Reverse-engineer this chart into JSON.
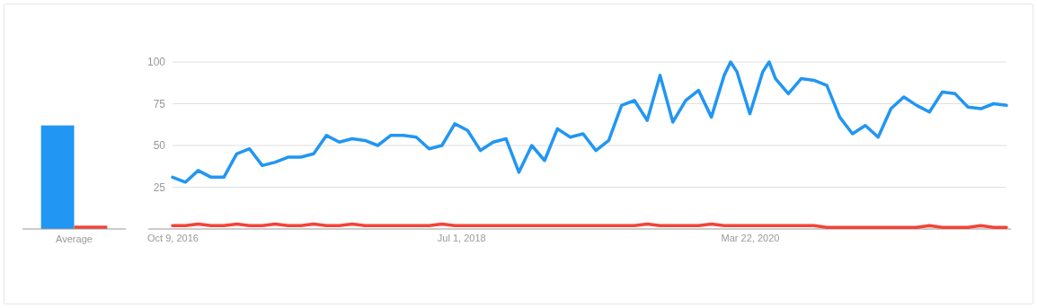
{
  "chart_data": [
    {
      "type": "bar",
      "categories": [
        "Average"
      ],
      "ylim": [
        0,
        100
      ],
      "tick_labels": "x",
      "series": [
        {
          "color": "#2196f3",
          "values": [
            62
          ]
        },
        {
          "color": "#f44336",
          "values": [
            2
          ]
        }
      ]
    },
    {
      "type": "line",
      "xlim": [
        "2016-10-09",
        "2021-10-03"
      ],
      "ylim": [
        0,
        100
      ],
      "yticks": [
        25,
        50,
        75,
        100
      ],
      "grid": "y",
      "xticks": [
        {
          "value": "2016-10-09",
          "label": "Oct 9, 2016"
        },
        {
          "value": "2018-07-01",
          "label": "Jul 1, 2018"
        },
        {
          "value": "2020-03-22",
          "label": "Mar 22, 2020"
        }
      ],
      "x": [
        "2016-10-09",
        "2016-11-06",
        "2016-12-04",
        "2017-01-01",
        "2017-01-29",
        "2017-02-26",
        "2017-03-26",
        "2017-04-23",
        "2017-05-21",
        "2017-06-18",
        "2017-07-16",
        "2017-08-13",
        "2017-09-10",
        "2017-10-08",
        "2017-11-05",
        "2017-12-03",
        "2017-12-31",
        "2018-01-28",
        "2018-02-25",
        "2018-03-25",
        "2018-04-22",
        "2018-05-20",
        "2018-06-17",
        "2018-07-15",
        "2018-08-12",
        "2018-09-09",
        "2018-10-07",
        "2018-11-04",
        "2018-12-02",
        "2018-12-30",
        "2019-01-27",
        "2019-02-24",
        "2019-03-24",
        "2019-04-21",
        "2019-05-19",
        "2019-06-16",
        "2019-07-14",
        "2019-08-11",
        "2019-09-08",
        "2019-10-06",
        "2019-11-03",
        "2019-12-01",
        "2019-12-29",
        "2020-01-26",
        "2020-02-09",
        "2020-02-23",
        "2020-03-22",
        "2020-04-19",
        "2020-05-03",
        "2020-05-17",
        "2020-06-14",
        "2020-07-12",
        "2020-08-09",
        "2020-09-06",
        "2020-10-04",
        "2020-11-01",
        "2020-11-29",
        "2020-12-27",
        "2021-01-24",
        "2021-02-21",
        "2021-03-21",
        "2021-04-18",
        "2021-05-16",
        "2021-06-13",
        "2021-07-11",
        "2021-08-08",
        "2021-09-05",
        "2021-10-03"
      ],
      "series": [
        {
          "color": "#2196f3",
          "values": [
            31,
            28,
            35,
            31,
            31,
            45,
            48,
            38,
            40,
            43,
            43,
            45,
            56,
            52,
            54,
            53,
            50,
            56,
            56,
            55,
            48,
            50,
            63,
            59,
            47,
            52,
            54,
            34,
            50,
            41,
            60,
            55,
            57,
            47,
            53,
            74,
            77,
            65,
            92,
            64,
            77,
            83,
            67,
            92,
            100,
            94,
            69,
            94,
            100,
            90,
            81,
            90,
            89,
            86,
            67,
            57,
            62,
            55,
            72,
            79,
            74,
            70,
            82,
            81,
            73,
            72,
            75,
            74
          ]
        },
        {
          "color": "#f44336",
          "values": [
            2,
            2,
            3,
            2,
            2,
            3,
            2,
            2,
            3,
            2,
            2,
            3,
            2,
            2,
            3,
            2,
            2,
            2,
            2,
            2,
            2,
            3,
            2,
            2,
            2,
            2,
            2,
            2,
            2,
            2,
            2,
            2,
            2,
            2,
            2,
            2,
            2,
            3,
            2,
            2,
            2,
            2,
            3,
            2,
            2,
            2,
            2,
            2,
            2,
            2,
            2,
            2,
            2,
            1,
            1,
            1,
            1,
            1,
            1,
            1,
            1,
            2,
            1,
            1,
            1,
            2,
            1,
            1
          ]
        }
      ]
    }
  ]
}
